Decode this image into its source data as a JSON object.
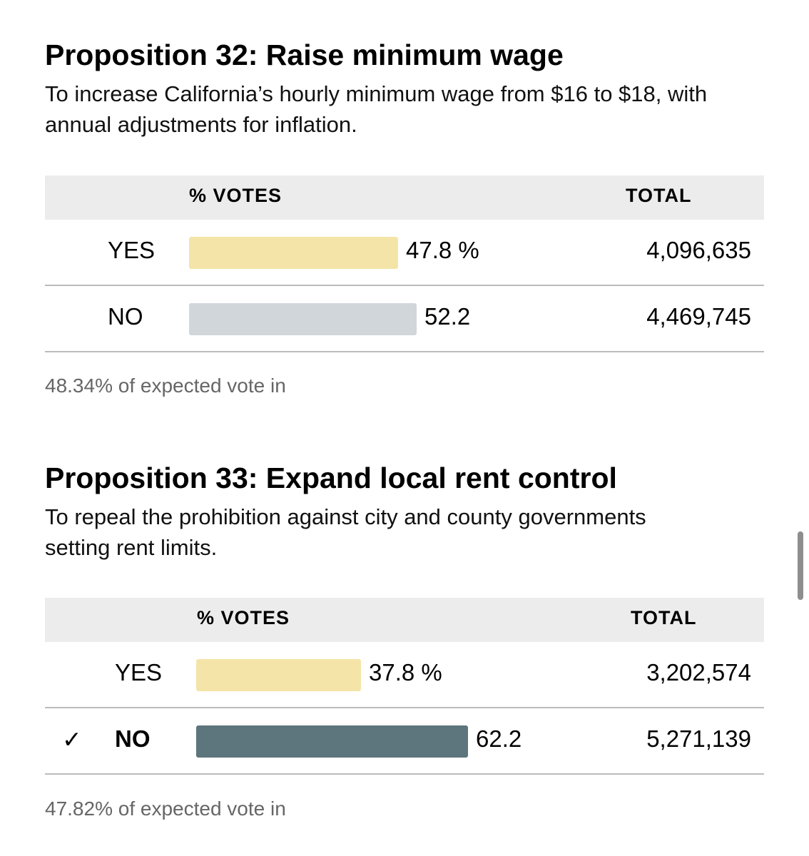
{
  "propositions": [
    {
      "title": "Proposition 32: Raise minimum wage",
      "description": "To increase California’s hourly minimum wage from $16 to $18, with annual adjustments for inflation.",
      "header_votes": "% VOTES",
      "header_total": "TOTAL",
      "rows": [
        {
          "label": "YES",
          "pct": "47.8 %",
          "pct_value": 47.8,
          "total": "4,096,635",
          "bar_color": "#f5e4a8",
          "winner": false
        },
        {
          "label": "NO",
          "pct": "52.2",
          "pct_value": 52.2,
          "total": "4,469,745",
          "bar_color": "#d1d6db",
          "winner": false
        }
      ],
      "footnote": "48.34% of expected vote in"
    },
    {
      "title": "Proposition 33: Expand local rent control",
      "description": "To repeal the prohibition against city and county governments setting rent limits.",
      "header_votes": "% VOTES",
      "header_total": "TOTAL",
      "rows": [
        {
          "label": "YES",
          "pct": "37.8 %",
          "pct_value": 37.8,
          "total": "3,202,574",
          "bar_color": "#f5e4a8",
          "winner": false
        },
        {
          "label": "NO",
          "pct": "62.2",
          "pct_value": 62.2,
          "total": "5,271,139",
          "bar_color": "#5d757c",
          "winner": true,
          "check": "✓"
        }
      ],
      "footnote": "47.82% of expected vote in"
    }
  ]
}
